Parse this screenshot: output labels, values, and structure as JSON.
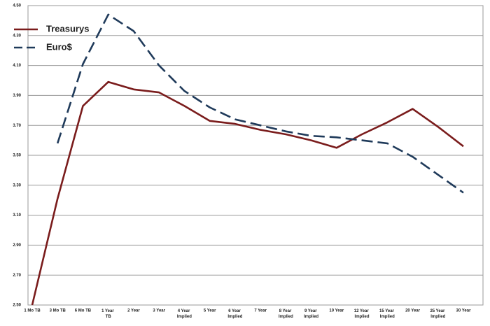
{
  "chart_data": {
    "type": "line",
    "categories": [
      "1 Mo TB",
      "3 Mo TB",
      "6 Mo TB",
      "1 Year TB",
      "2 Year",
      "3 Year",
      "4 Year Implied",
      "5 Year",
      "6 Year Implied",
      "7 Year",
      "8 Year Implied",
      "9 Year Implied",
      "10 Year",
      "12 Year Implied",
      "15 Year Implied",
      "20 Year",
      "25 Year Implied",
      "30 Year"
    ],
    "series": [
      {
        "name": "Treasurys",
        "color": "#7a1c1c",
        "dashed": false,
        "values": [
          2.5,
          3.21,
          3.83,
          3.99,
          3.94,
          3.92,
          3.83,
          3.73,
          3.71,
          3.67,
          3.64,
          3.6,
          3.55,
          3.64,
          3.72,
          3.81,
          3.69,
          3.56
        ]
      },
      {
        "name": "Euro$",
        "color": "#1f3a5a",
        "dashed": true,
        "values": [
          null,
          3.58,
          4.11,
          4.44,
          4.33,
          4.1,
          3.93,
          3.82,
          3.74,
          3.7,
          3.66,
          3.63,
          3.62,
          3.6,
          3.58,
          3.49,
          3.37,
          3.25
        ]
      }
    ],
    "ylim": [
      2.5,
      4.5
    ],
    "yticks": [
      {
        "value": 2.5,
        "label": "2.50"
      },
      {
        "value": 2.7,
        "label": "2.70"
      },
      {
        "value": 2.9,
        "label": "2.90"
      },
      {
        "value": 3.1,
        "label": "3.10"
      },
      {
        "value": 3.3,
        "label": "3.30"
      },
      {
        "value": 3.5,
        "label": "3.50"
      },
      {
        "value": 3.7,
        "label": "3.70"
      },
      {
        "value": 3.9,
        "label": "3.90"
      },
      {
        "value": 4.1,
        "label": "4.10"
      },
      {
        "value": 4.3,
        "label": "4.30"
      },
      {
        "value": 4.5,
        "label": "4.50"
      }
    ],
    "grid": true,
    "legend": "upper-left"
  }
}
